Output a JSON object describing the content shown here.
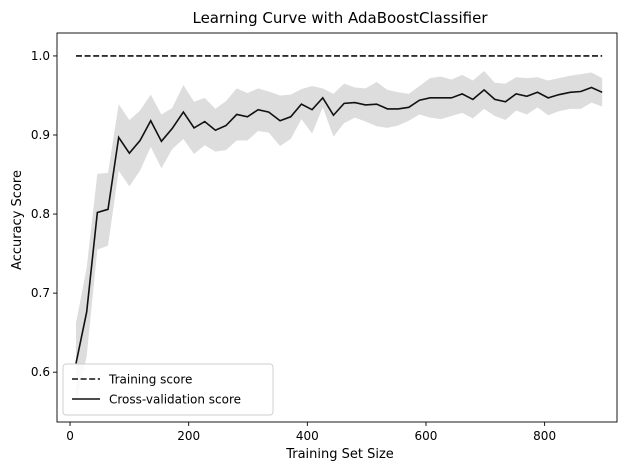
{
  "chart_data": {
    "type": "line",
    "title": "Learning Curve with AdaBoostClassifier",
    "xlabel": "Training Set Size",
    "ylabel": "Accuracy Score",
    "xlim": [
      -22,
      922
    ],
    "ylim": [
      0.537,
      1.029
    ],
    "xticks": [
      0,
      200,
      400,
      600,
      800
    ],
    "xtick_labels": [
      "0",
      "200",
      "400",
      "600",
      "800"
    ],
    "yticks": [
      0.6,
      0.7,
      0.8,
      0.9,
      1.0
    ],
    "ytick_labels": [
      "0.6",
      "0.7",
      "0.8",
      "0.9",
      "1.0"
    ],
    "grid": false,
    "legend_position": "lower-left",
    "x": [
      10,
      28,
      46,
      64,
      82,
      100,
      118,
      136,
      154,
      172,
      191,
      209,
      227,
      245,
      263,
      281,
      299,
      317,
      335,
      354,
      372,
      390,
      408,
      426,
      444,
      462,
      480,
      498,
      517,
      535,
      553,
      571,
      589,
      607,
      625,
      643,
      661,
      679,
      698,
      716,
      734,
      752,
      770,
      788,
      806,
      824,
      843,
      861,
      879,
      897
    ],
    "series": [
      {
        "name": "Training score",
        "style": "dashed",
        "color": "#111111",
        "values": [
          1.0,
          1.0,
          1.0,
          1.0,
          1.0,
          1.0,
          1.0,
          1.0,
          1.0,
          1.0,
          1.0,
          1.0,
          1.0,
          1.0,
          1.0,
          1.0,
          1.0,
          1.0,
          1.0,
          1.0,
          1.0,
          1.0,
          1.0,
          1.0,
          1.0,
          1.0,
          1.0,
          1.0,
          1.0,
          1.0,
          1.0,
          1.0,
          1.0,
          1.0,
          1.0,
          1.0,
          1.0,
          1.0,
          1.0,
          1.0,
          1.0,
          1.0,
          1.0,
          1.0,
          1.0,
          1.0,
          1.0,
          1.0,
          1.0,
          1.0
        ]
      },
      {
        "name": "Cross-validation score",
        "style": "solid",
        "color": "#111111",
        "values": [
          0.611,
          0.676,
          0.802,
          0.806,
          0.897,
          0.877,
          0.893,
          0.918,
          0.892,
          0.908,
          0.929,
          0.909,
          0.917,
          0.906,
          0.912,
          0.926,
          0.923,
          0.932,
          0.929,
          0.918,
          0.923,
          0.939,
          0.932,
          0.947,
          0.925,
          0.94,
          0.941,
          0.938,
          0.939,
          0.933,
          0.933,
          0.935,
          0.944,
          0.947,
          0.947,
          0.947,
          0.952,
          0.945,
          0.957,
          0.945,
          0.942,
          0.952,
          0.949,
          0.954,
          0.947,
          0.951,
          0.954,
          0.955,
          0.96,
          0.954
        ],
        "band_lower": [
          0.56,
          0.62,
          0.755,
          0.76,
          0.855,
          0.835,
          0.855,
          0.885,
          0.858,
          0.882,
          0.895,
          0.876,
          0.887,
          0.879,
          0.881,
          0.893,
          0.893,
          0.905,
          0.903,
          0.886,
          0.895,
          0.92,
          0.902,
          0.935,
          0.898,
          0.915,
          0.922,
          0.917,
          0.911,
          0.909,
          0.912,
          0.918,
          0.926,
          0.922,
          0.92,
          0.924,
          0.928,
          0.921,
          0.933,
          0.924,
          0.919,
          0.931,
          0.926,
          0.935,
          0.925,
          0.93,
          0.933,
          0.933,
          0.941,
          0.936
        ],
        "band_upper": [
          0.662,
          0.732,
          0.851,
          0.852,
          0.939,
          0.919,
          0.931,
          0.951,
          0.926,
          0.934,
          0.963,
          0.942,
          0.947,
          0.933,
          0.943,
          0.959,
          0.953,
          0.959,
          0.955,
          0.95,
          0.951,
          0.958,
          0.962,
          0.959,
          0.952,
          0.965,
          0.96,
          0.959,
          0.967,
          0.957,
          0.954,
          0.952,
          0.962,
          0.972,
          0.974,
          0.97,
          0.976,
          0.969,
          0.981,
          0.966,
          0.965,
          0.973,
          0.972,
          0.973,
          0.969,
          0.972,
          0.975,
          0.977,
          0.979,
          0.972
        ],
        "band_color": "#dddddd"
      }
    ]
  }
}
